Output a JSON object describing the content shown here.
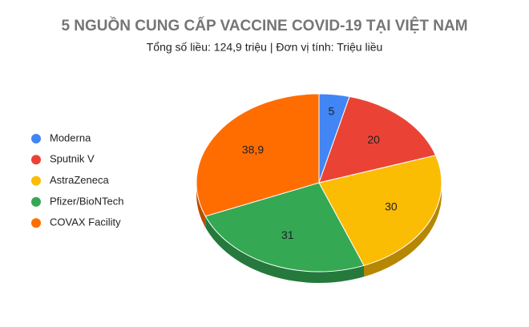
{
  "chart_data": {
    "type": "pie3d",
    "title": "5 NGUỒN CUNG CẤP VACCINE COVID-19 TẠI VIỆT NAM",
    "subtitle": "Tổng số liều: 124,9 triệu | Đơn vị tính: Triệu liều",
    "categories": [
      "Moderna",
      "Sputnik V",
      "AstraZeneca",
      "Pfizer/BioNTech",
      "COVAX Facility"
    ],
    "values": [
      5,
      20,
      30,
      31,
      38.9
    ],
    "value_labels": [
      "5",
      "20",
      "30",
      "31",
      "38,9"
    ],
    "colors": [
      "#4285f4",
      "#ea4335",
      "#fbbc04",
      "#34a853",
      "#ff6d01"
    ],
    "legend": "left"
  }
}
